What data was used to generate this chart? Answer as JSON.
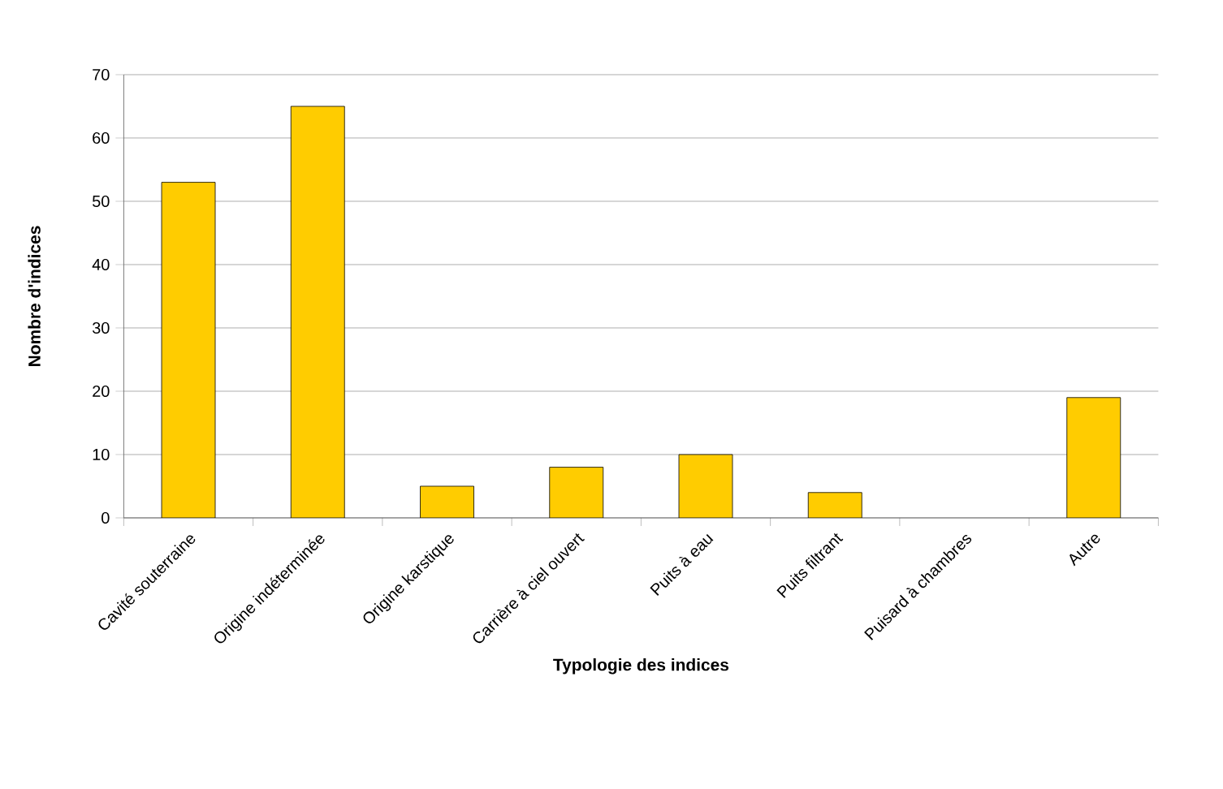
{
  "chart_data": {
    "type": "bar",
    "xlabel": "Typologie des indices",
    "ylabel": "Nombre d'indices",
    "categories": [
      "Cavité souterraine",
      "Origine indéterminée",
      "Origine karstique",
      "Carrière à ciel ouvert",
      "Puits à eau",
      "Puits filtrant",
      "Puisard à chambres",
      "Autre"
    ],
    "values": [
      53,
      65,
      5,
      8,
      10,
      4,
      0,
      19
    ],
    "color": "#ffcc00",
    "ylim": [
      0,
      70
    ],
    "yticks": [
      0,
      10,
      20,
      30,
      40,
      50,
      60,
      70
    ],
    "grid": "y"
  }
}
